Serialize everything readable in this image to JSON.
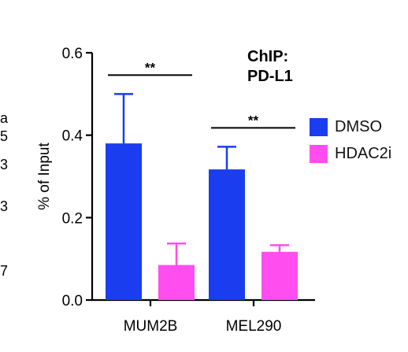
{
  "chart_data": {
    "type": "bar",
    "annotation": [
      "ChIP:",
      "PD-L1"
    ],
    "ylabel": "% of Input",
    "xlabel": "",
    "ylim": [
      0,
      0.6
    ],
    "yticks": [
      "0.0",
      "0.2",
      "0.4",
      "0.6"
    ],
    "grid": false,
    "legend_position": "right",
    "categories": [
      "MUM2B",
      "MEL290"
    ],
    "series": [
      {
        "name": "DMSO",
        "color": "#1a3df0",
        "values": [
          0.38,
          0.317
        ],
        "errors": [
          0.12,
          0.055
        ]
      },
      {
        "name": "HDAC2i",
        "color": "#ff4df0",
        "values": [
          0.085,
          0.117
        ],
        "errors": [
          0.052,
          0.016
        ]
      }
    ],
    "significance": [
      {
        "category": "MUM2B",
        "label": "**"
      },
      {
        "category": "MEL290",
        "label": "**"
      }
    ]
  },
  "edge_fragments": [
    "a",
    "5",
    "3",
    "3",
    "7"
  ]
}
